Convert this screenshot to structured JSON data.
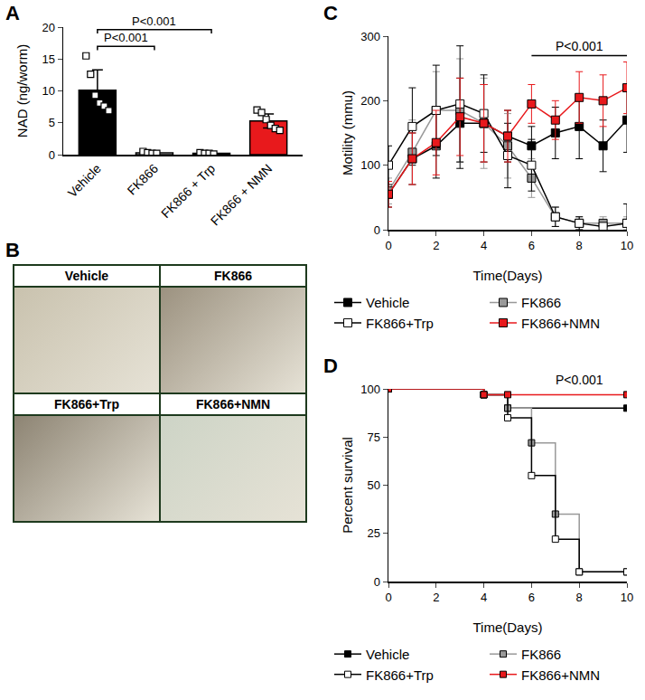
{
  "chart_data": [
    {
      "panel": "A",
      "type": "bar",
      "categories": [
        "Vehicle",
        "FK866",
        "FK866 + Trp",
        "FK866 + NMN"
      ],
      "values": [
        10.1,
        0.3,
        0.2,
        5.3
      ],
      "errors": [
        3.2,
        0.2,
        0.1,
        1.1
      ],
      "points": [
        [
          15.5,
          12.6,
          9.3,
          8.1,
          7.6,
          6.9
        ],
        [
          0.5,
          0.3,
          0.2,
          0.2
        ],
        [
          0.3,
          0.2,
          0.2,
          0.1
        ],
        [
          7.0,
          6.6,
          5.5,
          4.6,
          4.1,
          3.8
        ]
      ],
      "colors": [
        "#000000",
        "#ffffff",
        "#ffffff",
        "#e8191c"
      ],
      "marker": "square",
      "y_label": "NAD (ng/worm)",
      "ylim": [
        0,
        20
      ],
      "yticks": [
        0,
        5,
        10,
        15,
        20
      ],
      "comparisons": [
        {
          "from": "Vehicle",
          "to": "FK866 + Trp",
          "label": "P<0.001"
        },
        {
          "from": "Vehicle",
          "to": "FK866",
          "label": "P<0.001"
        }
      ]
    },
    {
      "panel": "B",
      "type": "image",
      "labels": [
        "Vehicle",
        "FK866",
        "FK866+Trp",
        "FK866+NMN"
      ]
    },
    {
      "panel": "C",
      "type": "line",
      "x": [
        0,
        1,
        2,
        3,
        4,
        5,
        6,
        7,
        8,
        9,
        10
      ],
      "series": [
        {
          "name": "Vehicle",
          "color": "#000000",
          "values": [
            55,
            110,
            130,
            165,
            165,
            145,
            130,
            150,
            160,
            130,
            170
          ],
          "errors": [
            20,
            40,
            50,
            70,
            60,
            40,
            30,
            40,
            50,
            40,
            50
          ]
        },
        {
          "name": "FK866",
          "color": "#999999",
          "values": [
            60,
            120,
            185,
            185,
            165,
            130,
            80,
            20,
            10,
            10,
            10
          ],
          "errors": [
            20,
            50,
            60,
            80,
            70,
            50,
            30,
            15,
            10,
            10,
            10
          ]
        },
        {
          "name": "FK866+Trp",
          "color": "#ffffff",
          "values": [
            100,
            160,
            185,
            195,
            180,
            115,
            100,
            20,
            10,
            5,
            10
          ],
          "errors": [
            30,
            60,
            70,
            90,
            60,
            50,
            40,
            15,
            10,
            5,
            30
          ]
        },
        {
          "name": "FK866+NMN",
          "color": "#e8191c",
          "values": [
            55,
            110,
            135,
            175,
            165,
            145,
            195,
            170,
            205,
            200,
            220
          ],
          "errors": [
            20,
            40,
            50,
            60,
            60,
            40,
            30,
            30,
            40,
            40,
            40
          ]
        }
      ],
      "marker": "square",
      "legend": "bottom",
      "x_label": "Time(Days)",
      "y_label": "Motility (mmu)",
      "xlim": [
        0,
        10
      ],
      "xticks": [
        0,
        2,
        4,
        6,
        8,
        10
      ],
      "ylim": [
        0,
        300
      ],
      "yticks": [
        0,
        100,
        200,
        300
      ],
      "annotations": [
        {
          "text": "P<0.001",
          "x_from": 6,
          "x_to": 10
        }
      ]
    },
    {
      "panel": "D",
      "type": "step",
      "series": [
        {
          "name": "Vehicle",
          "color": "#000000",
          "x": [
            0,
            4,
            5,
            10
          ],
          "values": [
            100,
            97,
            90,
            90
          ]
        },
        {
          "name": "FK866",
          "color": "#999999",
          "x": [
            0,
            4,
            5,
            6,
            7,
            8,
            10
          ],
          "values": [
            100,
            97,
            90,
            72,
            35,
            5,
            5
          ]
        },
        {
          "name": "FK866+Trp",
          "color": "#ffffff",
          "x": [
            0,
            4,
            5,
            6,
            7,
            8,
            10
          ],
          "values": [
            100,
            97,
            85,
            55,
            22,
            5,
            5
          ]
        },
        {
          "name": "FK866+NMN",
          "color": "#e8191c",
          "x": [
            0,
            4,
            5,
            10
          ],
          "values": [
            100,
            97,
            97,
            97
          ]
        }
      ],
      "marker": "square",
      "legend": "bottom",
      "x_label": "Time(Days)",
      "y_label": "Percent survival",
      "xlim": [
        0,
        10
      ],
      "xticks": [
        0,
        2,
        4,
        6,
        8,
        10
      ],
      "ylim": [
        0,
        100
      ],
      "yticks": [
        0,
        25,
        50,
        75,
        100
      ],
      "annotations": [
        {
          "text": "P<0.001",
          "x": 8
        }
      ]
    }
  ]
}
